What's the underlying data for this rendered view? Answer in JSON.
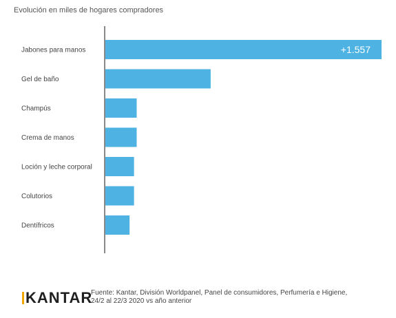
{
  "header": {
    "title": "Evolución en miles de hogares compradores"
  },
  "chart_data": {
    "type": "bar",
    "orientation": "horizontal",
    "title": "Evolución en miles de hogares compradores",
    "categories": [
      "Jabones para manos",
      "Gel de baño",
      "Champús",
      "Crema de manos",
      "Loción y leche corporal",
      "Colutorios",
      "Dentífricos"
    ],
    "values": [
      1557,
      596,
      180,
      180,
      165,
      165,
      140
    ],
    "data_labels": [
      "+1.557",
      "",
      "",
      "",
      "",
      "",
      ""
    ],
    "xlim": [
      0,
      1557
    ],
    "bar_color": "#4eb3e3",
    "axis_color": "#888888",
    "grid": false,
    "legend": "none"
  },
  "footer": {
    "logo_text": "KANTAR",
    "logo_accent_color": "#f0a500",
    "source_line1": "Fuente: Kantar, División Worldpanel, Panel de consumidores, Perfumería e Higiene,",
    "source_line2": "24/2 al 22/3 2020 vs año anterior"
  }
}
